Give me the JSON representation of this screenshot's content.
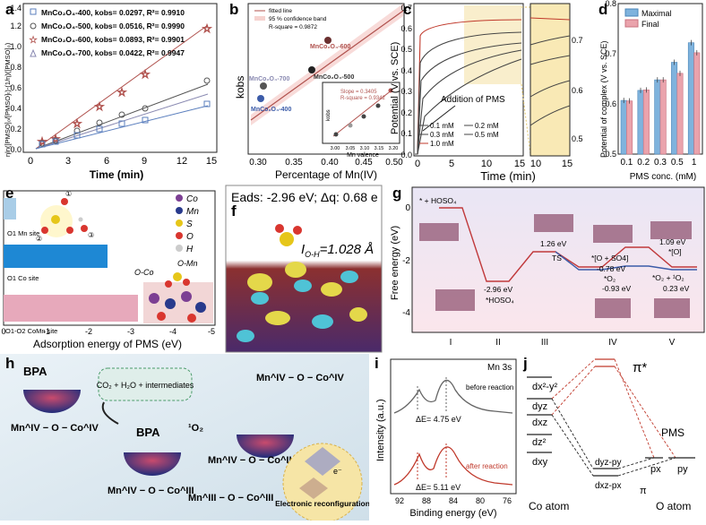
{
  "panel_labels": [
    "a",
    "b",
    "c",
    "d",
    "e",
    "f",
    "g",
    "h",
    "i",
    "j"
  ],
  "colors": {
    "mno400": "#5b7fbe",
    "mno500": "#555555",
    "mno600": "#b0524e",
    "mno700": "#8a8ab2",
    "maximal": "#7fb3dd",
    "final": "#eaa3ac",
    "adsorption_blue": "#1e88d4",
    "adsorption_pink": "#e7a9bb",
    "free_energy_red": "#c0393b",
    "free_energy_blue": "#3b5ba8",
    "orbital_red": "#c0392b"
  },
  "panel_a": {
    "title_ylabel": "ηln([PMSO]₀/[PMSO]ₜ)-(1/η)([PMSO]₀)",
    "xlabel": "Time (min)",
    "xticks": [
      "0",
      "3",
      "6",
      "9",
      "12",
      "15"
    ],
    "yticks": [
      "0.0",
      "0.2",
      "0.4",
      "0.6",
      "0.8",
      "1.0",
      "1.2",
      "1.4"
    ],
    "legend": [
      "MnCo₂O₄-400, kobs= 0.0297, R²= 0.9910",
      "MnCo₂O₄-500, kobs= 0.0516, R²= 0.9990",
      "MnCo₂O₄-600, kobs= 0.0893, R²= 0.9901",
      "MnCo₂O₄-700, kobs= 0.0422, R²= 0.9947"
    ]
  },
  "panel_b": {
    "xlabel": "Percentage of Mn(IV)",
    "ylabel": "kobs",
    "xticks": [
      "0.30",
      "0.35",
      "0.40",
      "0.45",
      "0.50"
    ],
    "legend": [
      "fitted line",
      "95 % confidence band",
      "R-square = 0.9872"
    ],
    "points": [
      "MnCo₂O₄-600",
      "MnCo₂O₄-700",
      "MnCo₂O₄-500",
      "MnCo₂O₄-400"
    ],
    "inset": {
      "slope": "Slope = 0.3405",
      "rsq": "R-square = 0.9342",
      "xlabel": "Mn valence",
      "ylabel": "kobs",
      "xticks": [
        "3.00",
        "3.05",
        "3.10",
        "3.15",
        "3.20"
      ]
    }
  },
  "panel_c": {
    "ylabel": "Potential (V vs. SCE)",
    "xlabel": "Time (min)",
    "xticks": [
      "0",
      "5",
      "10",
      "15"
    ],
    "xticks_zoom": [
      "10",
      "15"
    ],
    "yticks": [
      "0.0",
      "0.1",
      "0.2",
      "0.3",
      "0.4",
      "0.5",
      "0.6",
      "0.7"
    ],
    "yticks_zoom": [
      "0.7",
      "0.6",
      "0.5"
    ],
    "annotation": "Addition of PMS",
    "legend": [
      "0.1 mM",
      "0.2 mM",
      "0.3 mM",
      "0.5 mM",
      "1.0 mM"
    ]
  },
  "chart_data": {
    "type": "bar",
    "title": "",
    "xlabel": "PMS conc. (mM)",
    "ylabel": "Potential of complex (V vs. SCE)",
    "categories": [
      "0.1",
      "0.2",
      "0.3",
      "0.5",
      "1"
    ],
    "series": [
      {
        "name": "Maximal",
        "values": [
          0.607,
          0.627,
          0.648,
          0.683,
          0.722
        ]
      },
      {
        "name": "Final",
        "values": [
          0.606,
          0.628,
          0.648,
          0.661,
          0.702
        ]
      }
    ],
    "ylim": [
      0.5,
      0.8
    ],
    "yticks": [
      "0.5",
      "0.6",
      "0.7",
      "0.8"
    ]
  },
  "panel_e": {
    "xlabel": "Adsorption energy of PMS (eV)",
    "xticks": [
      "0",
      "-1",
      "-2",
      "-3",
      "-4",
      "-5"
    ],
    "bars": [
      "O1 Mn site",
      "O1 Co site",
      "O1-O2 CoMn site"
    ],
    "legend": [
      "Co",
      "Mn",
      "S",
      "O",
      "H"
    ],
    "labels": [
      "O-Mn",
      "O-Co"
    ],
    "atom_numbers": [
      "①",
      "②",
      "③"
    ]
  },
  "panel_f": {
    "eads": "Eads: -2.96 eV; Δq: 0.68 e",
    "bond": "I",
    "bond_sub": "O-H",
    "bond_val": "=1.028 Å"
  },
  "panel_g": {
    "ylabel": "Free energy (eV)",
    "yticks": [
      "0",
      "-2",
      "-4"
    ],
    "xticks": [
      "I",
      "II",
      "III",
      "IV",
      "V"
    ],
    "labels": [
      "* + HOSO₄",
      "-2.96 eV",
      "*HOSO₄",
      "1.26 eV",
      "TS",
      "*[O + SO4]",
      "-0.78 eV",
      "*O₂",
      "-0.93 eV",
      "1.09 eV",
      "*[O]",
      "*O₂ + ¹O₂",
      "0.23 eV"
    ]
  },
  "panel_h": {
    "bpa": "BPA",
    "products": "CO₂ + H₂O + intermediates",
    "bpa2": "BPA",
    "singlet": "¹O₂",
    "species": [
      "Mn^IV − O − Co^IV",
      "Mn^IV − O − Co^III",
      "Mn^III − O − Co^III",
      "Mn^IV − O − Co^II",
      "Mn^IV − O − Co^IV"
    ],
    "electron": "e⁻",
    "reconfig": "Electronic reconfiguration"
  },
  "panel_i": {
    "title": "Mn 3s",
    "xlabel": "Binding energy (eV)",
    "ylabel": "Intensity (a.u.)",
    "xticks": [
      "92",
      "88",
      "84",
      "80",
      "76"
    ],
    "before": "before reaction",
    "after": "after reaction",
    "dE_before": "ΔE= 4.75 eV",
    "dE_after": "ΔE= 5.11 eV"
  },
  "panel_j": {
    "pi_star": "π*",
    "pi": "π",
    "pms": "PMS",
    "orbitals": [
      "dx²-y²",
      "dyz",
      "dxz",
      "dz²",
      "dxy"
    ],
    "mixed": [
      "dyz-py",
      "dxz-px"
    ],
    "p_orbitals": [
      "px",
      "py"
    ],
    "co_atom": "Co atom",
    "o_atom": "O atom"
  }
}
